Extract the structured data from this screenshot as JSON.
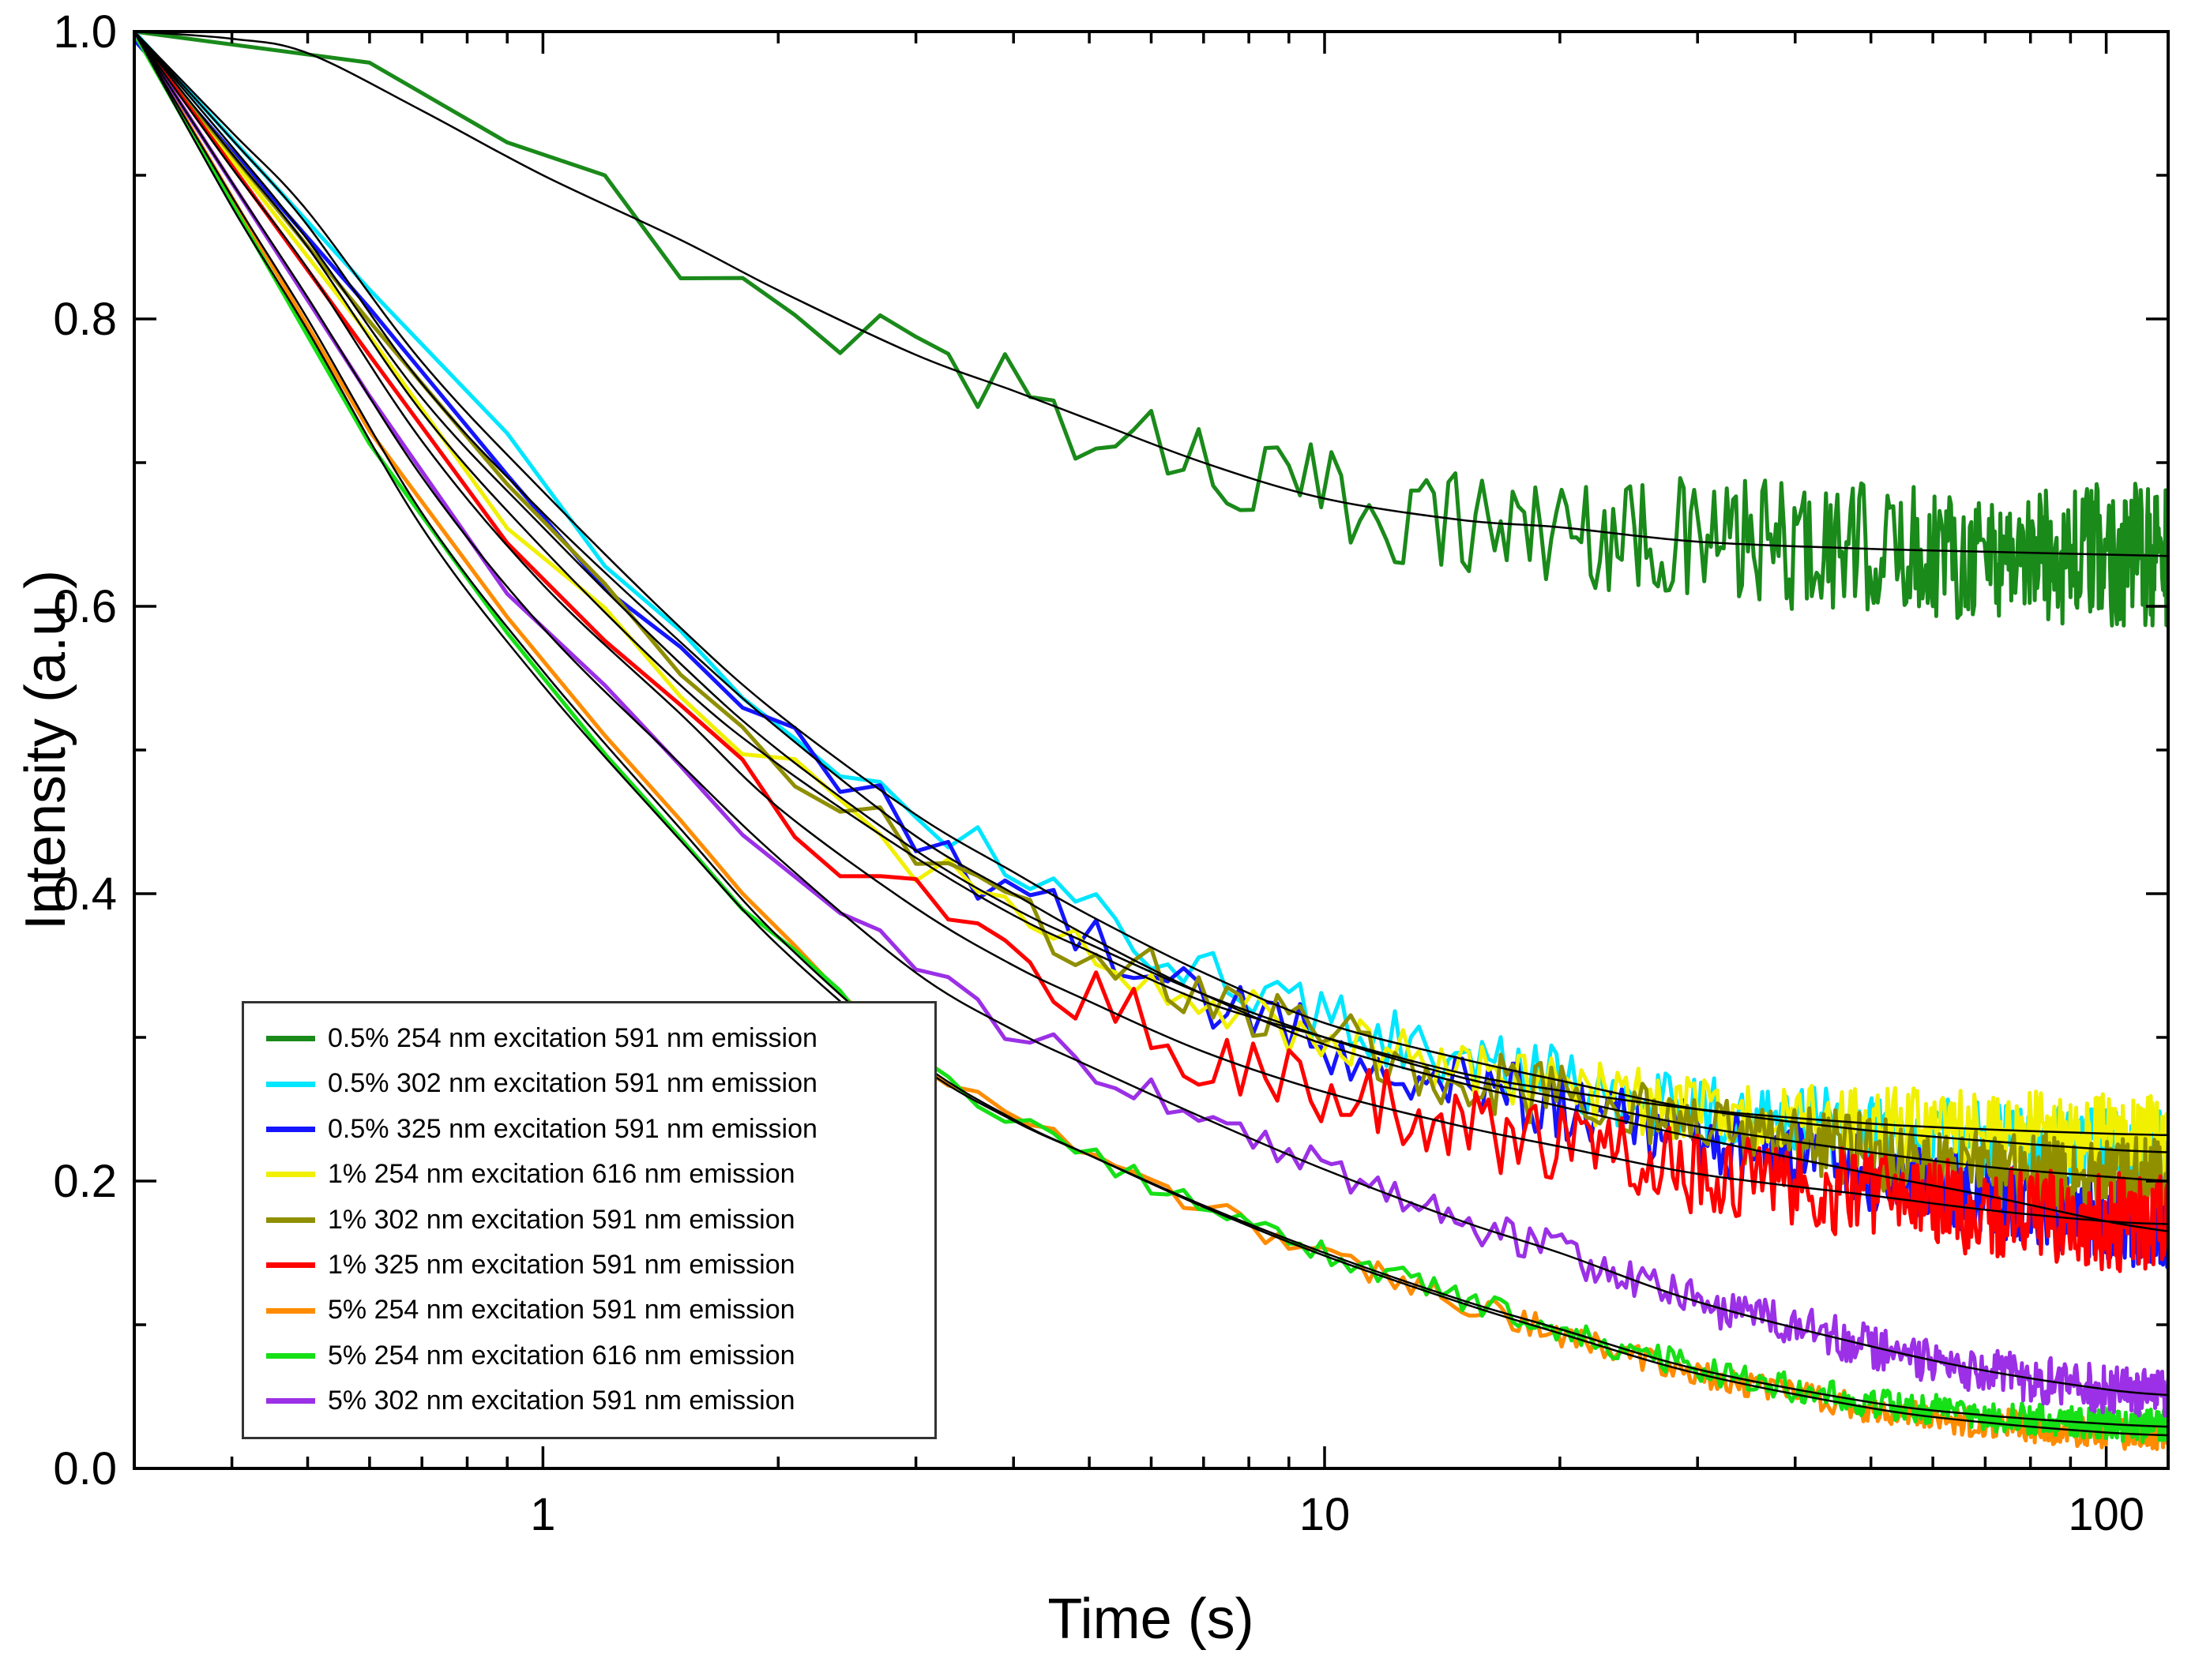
{
  "chart_data": {
    "type": "line",
    "title": "",
    "xlabel": "Time (s)",
    "ylabel": "Intensity (a.u.)",
    "x_scale": "log",
    "y_scale": "linear",
    "xlim": [
      0.3,
      120
    ],
    "ylim": [
      0.0,
      1.0
    ],
    "x_ticks": [
      1,
      10,
      100
    ],
    "x_tick_labels": [
      "1",
      "10",
      "100"
    ],
    "y_ticks": [
      0.0,
      0.2,
      0.4,
      0.6,
      0.8,
      1.0
    ],
    "y_tick_labels": [
      "0.0",
      "0.2",
      "0.4",
      "0.6",
      "0.8",
      "1.0"
    ],
    "grid": false,
    "legend_position": "lower-left",
    "fit_line_color": "#000000",
    "fit_lines_note": "thin black mono/bi-exponential fit curves overlay every colored decay trace",
    "anchors_x": [
      0.3,
      0.4,
      0.5,
      0.7,
      1,
      1.5,
      2,
      3,
      4,
      5,
      7,
      10,
      15,
      20,
      30,
      50,
      70,
      100,
      120
    ],
    "series": [
      {
        "name": "0.5% 254 nm excitation 591 nm emission",
        "color": "#1a8a1a",
        "noise": 0.035,
        "values": [
          1.0,
          0.995,
          0.985,
          0.945,
          0.9,
          0.855,
          0.82,
          0.775,
          0.75,
          0.73,
          0.7,
          0.675,
          0.66,
          0.655,
          0.645,
          0.64,
          0.638,
          0.636,
          0.635
        ]
      },
      {
        "name": "0.5% 302 nm excitation 591 nm emission",
        "color": "#00e6ff",
        "noise": 0.02,
        "values": [
          1.0,
          0.93,
          0.875,
          0.77,
          0.68,
          0.585,
          0.525,
          0.455,
          0.415,
          0.385,
          0.345,
          0.31,
          0.285,
          0.27,
          0.25,
          0.235,
          0.228,
          0.222,
          0.22
        ]
      },
      {
        "name": "0.5% 325 nm excitation 591 nm emission",
        "color": "#1515ff",
        "noise": 0.02,
        "values": [
          1.0,
          0.925,
          0.865,
          0.755,
          0.665,
          0.575,
          0.515,
          0.44,
          0.4,
          0.37,
          0.33,
          0.295,
          0.268,
          0.252,
          0.23,
          0.205,
          0.19,
          0.172,
          0.165
        ]
      },
      {
        "name": "1% 254 nm excitation 616 nm emission",
        "color": "#f0f000",
        "noise": 0.02,
        "values": [
          1.0,
          0.915,
          0.85,
          0.735,
          0.64,
          0.545,
          0.49,
          0.425,
          0.385,
          0.36,
          0.325,
          0.3,
          0.275,
          0.263,
          0.25,
          0.24,
          0.236,
          0.233,
          0.232
        ]
      },
      {
        "name": "1% 302 nm excitation 591 nm emission",
        "color": "#8f8f00",
        "noise": 0.02,
        "values": [
          1.0,
          0.92,
          0.855,
          0.745,
          0.655,
          0.56,
          0.5,
          0.43,
          0.39,
          0.365,
          0.33,
          0.3,
          0.272,
          0.258,
          0.238,
          0.22,
          0.21,
          0.203,
          0.2
        ]
      },
      {
        "name": "1% 325 nm excitation 591 nm emission",
        "color": "#ff0000",
        "noise": 0.024,
        "values": [
          1.0,
          0.905,
          0.835,
          0.715,
          0.615,
          0.525,
          0.46,
          0.39,
          0.35,
          0.325,
          0.29,
          0.262,
          0.238,
          0.224,
          0.205,
          0.19,
          0.18,
          0.172,
          0.17
        ]
      },
      {
        "name": "5% 254 nm excitation 591 nm emission",
        "color": "#ff8c00",
        "noise": 0.008,
        "values": [
          1.0,
          0.885,
          0.8,
          0.665,
          0.555,
          0.445,
          0.37,
          0.285,
          0.243,
          0.218,
          0.182,
          0.148,
          0.115,
          0.094,
          0.066,
          0.042,
          0.032,
          0.025,
          0.023
        ]
      },
      {
        "name": "5% 254 nm excitation 616 nm emission",
        "color": "#16e016",
        "noise": 0.008,
        "values": [
          1.0,
          0.878,
          0.792,
          0.655,
          0.545,
          0.437,
          0.364,
          0.282,
          0.242,
          0.218,
          0.183,
          0.15,
          0.117,
          0.097,
          0.069,
          0.046,
          0.037,
          0.031,
          0.029
        ]
      },
      {
        "name": "5% 302 nm excitation 591 nm emission",
        "color": "#9b30e6",
        "noise": 0.012,
        "values": [
          1.0,
          0.895,
          0.815,
          0.69,
          0.585,
          0.49,
          0.425,
          0.345,
          0.305,
          0.28,
          0.244,
          0.208,
          0.172,
          0.15,
          0.116,
          0.085,
          0.068,
          0.055,
          0.051
        ]
      }
    ]
  }
}
